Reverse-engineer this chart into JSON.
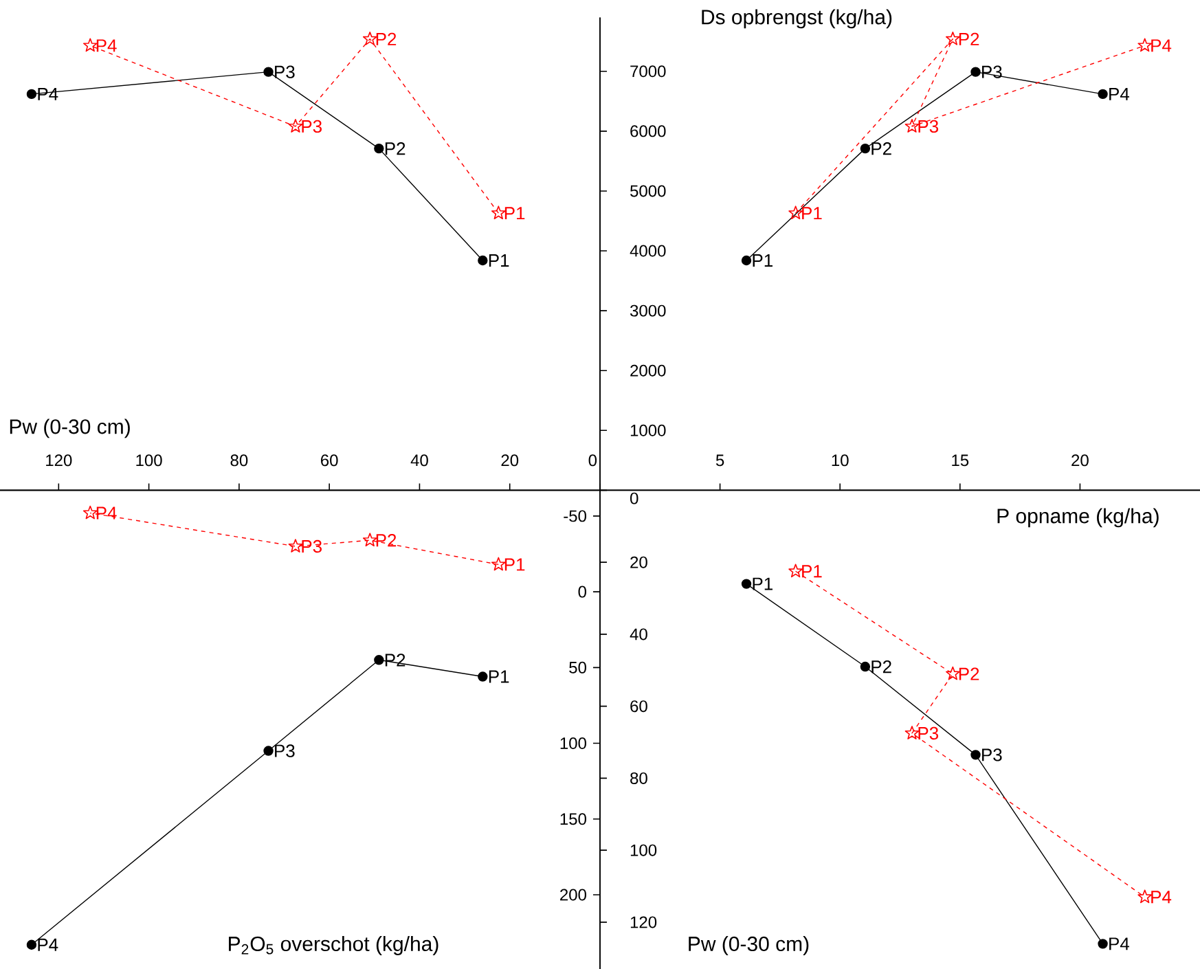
{
  "chart_data": [
    {
      "type": "line",
      "xlabel": "Pw (0-30 cm)",
      "xlim": [
        133,
        0
      ],
      "ylim": [
        0,
        7900
      ],
      "xticks": [
        20,
        40,
        60,
        80,
        100,
        120
      ],
      "tick_labels": "x",
      "series": [
        {
          "color": "#000000",
          "marker": "circle",
          "line_style": "solid",
          "x": [
            26,
            49,
            73.5,
            126
          ],
          "values": [
            3840,
            5710,
            6990,
            6620
          ]
        },
        {
          "color": "#ff0000",
          "marker": "star",
          "line_style": "dashed",
          "x": [
            22.5,
            51,
            67.5,
            113
          ],
          "values": [
            4630,
            7540,
            6080,
            7430
          ]
        }
      ],
      "annotations": [
        {
          "text": "P1",
          "x": 26,
          "y": 3840
        },
        {
          "text": "P2",
          "x": 49,
          "y": 5710
        },
        {
          "text": "P3",
          "x": 73.5,
          "y": 6990
        },
        {
          "text": "P4",
          "x": 126,
          "y": 6620
        },
        {
          "text": "P1",
          "x": 22.5,
          "y": 4630
        },
        {
          "text": "P2",
          "x": 51,
          "y": 7540
        },
        {
          "text": "P3",
          "x": 67.5,
          "y": 6080
        },
        {
          "text": "P4",
          "x": 113,
          "y": 7430
        }
      ]
    },
    {
      "type": "line",
      "xlabel": "P opname (kg/ha)",
      "ylabel": "Ds opbrengst (kg/ha)",
      "xlim": [
        0,
        25
      ],
      "ylim": [
        0,
        7900
      ],
      "xticks": [
        0,
        5,
        10,
        15,
        20
      ],
      "yticks": [
        1000,
        2000,
        3000,
        4000,
        5000,
        6000,
        7000
      ],
      "series": [
        {
          "color": "#000000",
          "marker": "circle",
          "line_style": "solid",
          "x": [
            6.1,
            11.05,
            15.65,
            20.95
          ],
          "values": [
            3840,
            5710,
            6990,
            6620
          ]
        },
        {
          "color": "#ff0000",
          "marker": "star",
          "line_style": "dashed",
          "x": [
            8.15,
            14.7,
            13,
            22.7
          ],
          "values": [
            4630,
            7540,
            6080,
            7430
          ]
        }
      ],
      "annotations": [
        {
          "text": "P1",
          "x": 6.1,
          "y": 3840
        },
        {
          "text": "P2",
          "x": 11.05,
          "y": 5710
        },
        {
          "text": "P3",
          "x": 15.65,
          "y": 6990
        },
        {
          "text": "P4",
          "x": 20.95,
          "y": 6620
        },
        {
          "text": "P1",
          "x": 8.15,
          "y": 4630
        },
        {
          "text": "P2",
          "x": 14.7,
          "y": 7540
        },
        {
          "text": "P3",
          "x": 13,
          "y": 6080
        },
        {
          "text": "P4",
          "x": 22.7,
          "y": 7430
        }
      ]
    },
    {
      "type": "line",
      "ylabel": "P$_{2}$O$_{5}$ overschot (kg/ha)",
      "xlim": [
        133,
        0
      ],
      "ylim": [
        249,
        -67
      ],
      "yticks": [
        -50,
        0,
        50,
        100,
        150,
        200
      ],
      "tick_labels": "y",
      "series": [
        {
          "color": "#000000",
          "marker": "circle",
          "line_style": "solid",
          "x": [
            26,
            49,
            73.5,
            126
          ],
          "values": [
            56,
            45,
            105,
            233
          ]
        },
        {
          "color": "#ff0000",
          "marker": "star",
          "line_style": "dashed",
          "x": [
            22.5,
            51,
            67.5,
            113
          ],
          "values": [
            -18,
            -34,
            -30,
            -52
          ]
        }
      ],
      "annotations": [
        {
          "text": "P1",
          "x": 26,
          "y": 56
        },
        {
          "text": "P2",
          "x": 49,
          "y": 45
        },
        {
          "text": "P3",
          "x": 73.5,
          "y": 105
        },
        {
          "text": "P4",
          "x": 126,
          "y": 233
        },
        {
          "text": "P1",
          "x": 22.5,
          "y": -18
        },
        {
          "text": "P2",
          "x": 51,
          "y": -34
        },
        {
          "text": "P3",
          "x": 67.5,
          "y": -30
        },
        {
          "text": "P4",
          "x": 113,
          "y": -52
        }
      ]
    },
    {
      "type": "line",
      "ylabel": "Pw (0-30 cm)",
      "xlim": [
        0,
        25
      ],
      "ylim": [
        133,
        0
      ],
      "yticks": [
        0,
        20,
        40,
        60,
        80,
        100,
        120
      ],
      "tick_labels": "y",
      "series": [
        {
          "color": "#000000",
          "marker": "circle",
          "line_style": "solid",
          "x": [
            6.1,
            11.05,
            15.65,
            20.95
          ],
          "values": [
            26,
            49,
            73.5,
            126
          ]
        },
        {
          "color": "#ff0000",
          "marker": "star",
          "line_style": "dashed",
          "x": [
            8.15,
            14.7,
            13,
            22.7
          ],
          "values": [
            22.5,
            51,
            67.5,
            113
          ]
        }
      ],
      "annotations": [
        {
          "text": "P1",
          "x": 6.1,
          "y": 26
        },
        {
          "text": "P2",
          "x": 11.05,
          "y": 49
        },
        {
          "text": "P3",
          "x": 15.65,
          "y": 73.5
        },
        {
          "text": "P4",
          "x": 20.95,
          "y": 126
        },
        {
          "text": "P1",
          "x": 8.15,
          "y": 22.5
        },
        {
          "text": "P2",
          "x": 14.7,
          "y": 51
        },
        {
          "text": "P3",
          "x": 13,
          "y": 67.5
        },
        {
          "text": "P4",
          "x": 22.7,
          "y": 113
        }
      ]
    }
  ]
}
